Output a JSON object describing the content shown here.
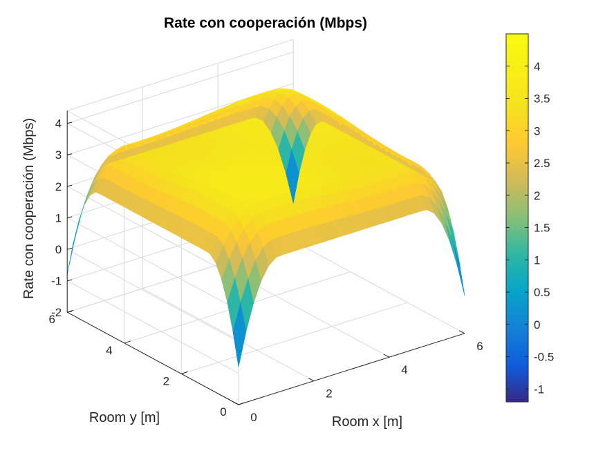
{
  "chart_data": {
    "type": "surface",
    "title": "Rate con cooperación (Mbps)",
    "xlabel": "Room x [m]",
    "ylabel": "Room y [m]",
    "zlabel": "Rate con cooperación (Mbps)",
    "xlim": [
      0,
      6
    ],
    "ylim": [
      0,
      6
    ],
    "zlim": [
      -2,
      4.4
    ],
    "x_ticks": [
      "0",
      "2",
      "4",
      "6"
    ],
    "y_ticks": [
      "0",
      "2",
      "4",
      "6"
    ],
    "z_ticks": [
      "-2",
      "-1",
      "0",
      "1",
      "2",
      "3",
      "4"
    ],
    "grid": true,
    "colormap": "parula",
    "colorbar": {
      "range": [
        -1.2,
        4.5
      ],
      "ticks": [
        "-1",
        "-0.5",
        "0",
        "0.5",
        "1",
        "1.5",
        "2",
        "2.5",
        "3",
        "3.5",
        "4"
      ]
    },
    "surface_samples": [
      {
        "x": 0,
        "y": 0,
        "z": -1.2
      },
      {
        "x": 6,
        "y": 0,
        "z": -1.2
      },
      {
        "x": 0,
        "y": 6,
        "z": -1.2
      },
      {
        "x": 6,
        "y": 6,
        "z": -1.2
      },
      {
        "x": 3,
        "y": 0,
        "z": 1.9
      },
      {
        "x": 0,
        "y": 3,
        "z": 1.9
      },
      {
        "x": 6,
        "y": 3,
        "z": 1.9
      },
      {
        "x": 3,
        "y": 6,
        "z": 1.9
      },
      {
        "x": 3,
        "y": 3,
        "z": 3.7
      },
      {
        "x": 1.5,
        "y": 1.5,
        "z": 4.4
      },
      {
        "x": 4.5,
        "y": 1.5,
        "z": 4.4
      },
      {
        "x": 1.5,
        "y": 4.5,
        "z": 4.4
      },
      {
        "x": 4.5,
        "y": 4.5,
        "z": 4.4
      }
    ]
  }
}
